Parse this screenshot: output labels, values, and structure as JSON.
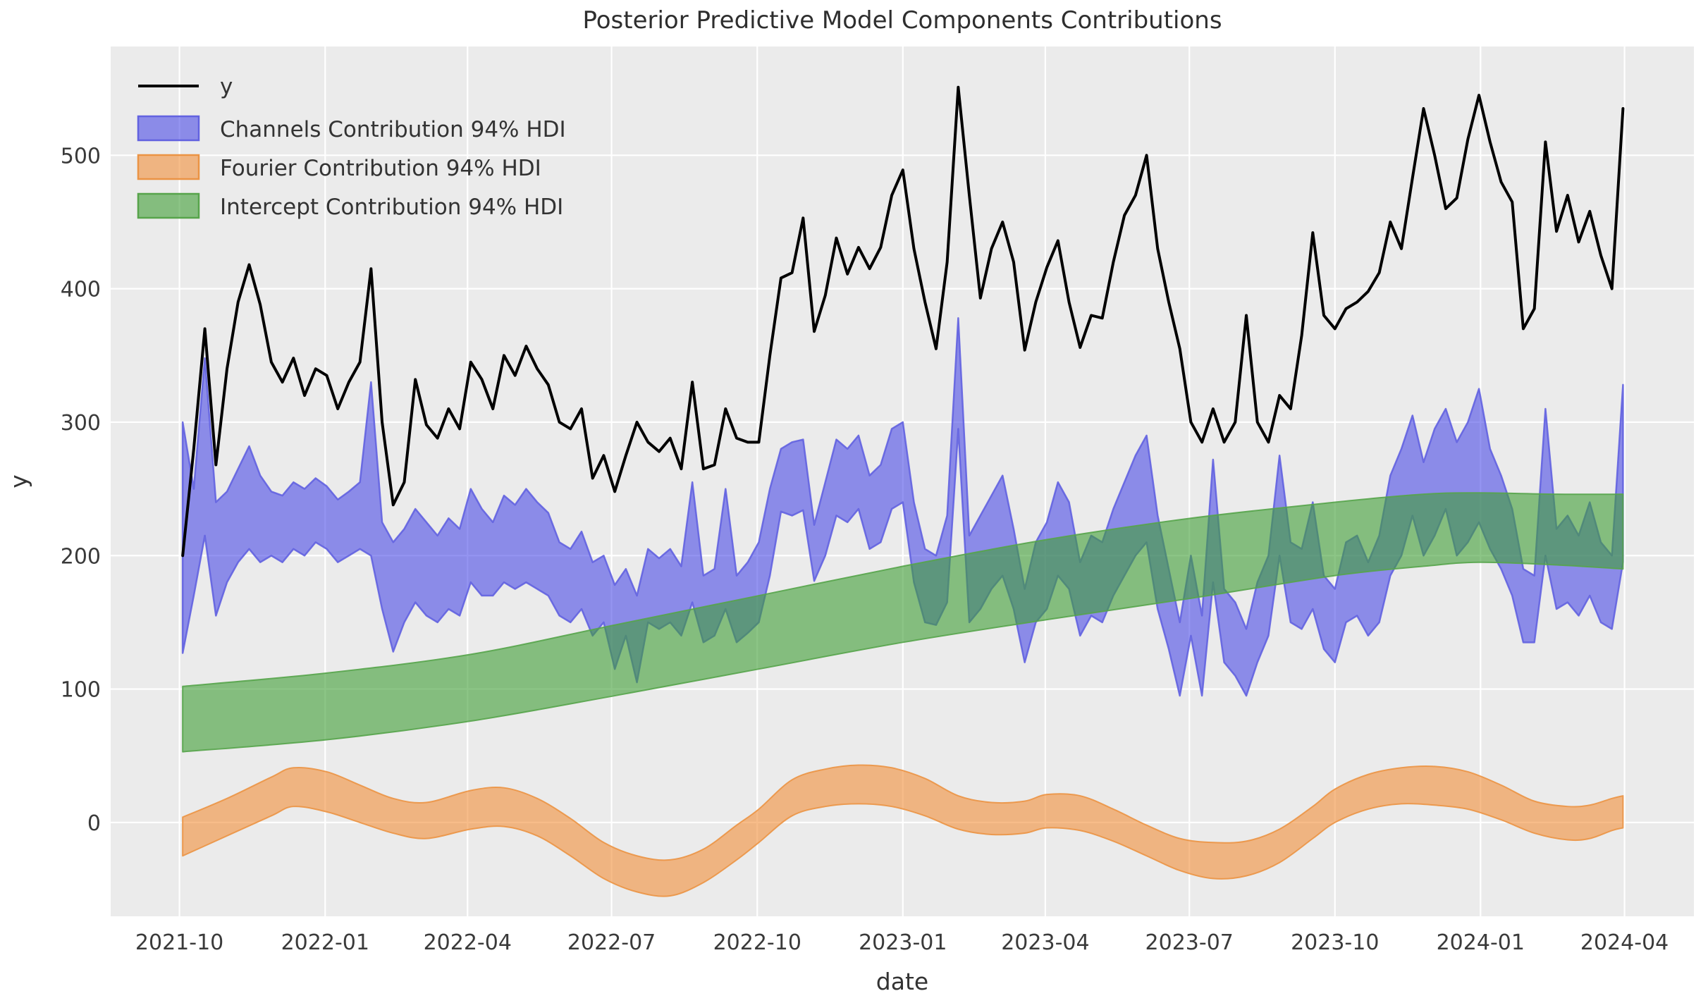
{
  "title": "Posterior Predictive Model Components Contributions",
  "xlabel": "date",
  "ylabel": "y",
  "legend": [
    {
      "label": "y",
      "type": "line"
    },
    {
      "label": "Channels Contribution 94% HDI",
      "type": "patch"
    },
    {
      "label": "Fourier Contribution 94% HDI",
      "type": "patch"
    },
    {
      "label": "Intercept Contribution 94% HDI",
      "type": "patch"
    }
  ],
  "colors": {
    "plot_background": "#ebebeb",
    "grid": "#ffffff",
    "y_line": "#000000",
    "channels_fill": "#3c3ce6",
    "channels_alpha": 0.55,
    "channels_edge": "#6262e0",
    "fourier_fill": "#f28b33",
    "fourier_alpha": 0.58,
    "fourier_edge": "#eb9344",
    "intercept_fill": "#3f9e35",
    "intercept_alpha": 0.6,
    "intercept_edge": "#57a44b",
    "text": "#3a3a3a"
  },
  "chart_data": {
    "type": "line",
    "x_unit": "weeks since 2021-10-03 (weekly observations)",
    "x_range_dates": [
      "2021-10-03",
      "2024-03-31"
    ],
    "xlim_weeks": [
      -6.5,
      136.4
    ],
    "ylim": [
      -70.3,
      581.5
    ],
    "grid": true,
    "legend_position": "upper left",
    "yticks": [
      0,
      100,
      200,
      300,
      400,
      500
    ],
    "xticks": [
      {
        "label": "2021-10",
        "week": -0.29
      },
      {
        "label": "2022-01",
        "week": 12.86
      },
      {
        "label": "2022-04",
        "week": 25.71
      },
      {
        "label": "2022-07",
        "week": 38.71
      },
      {
        "label": "2022-10",
        "week": 51.86
      },
      {
        "label": "2023-01",
        "week": 65.0
      },
      {
        "label": "2023-04",
        "week": 77.86
      },
      {
        "label": "2023-07",
        "week": 90.86
      },
      {
        "label": "2023-10",
        "week": 104.0
      },
      {
        "label": "2024-01",
        "week": 117.14
      },
      {
        "label": "2024-04",
        "week": 130.14
      }
    ],
    "x": [
      0,
      1,
      2,
      3,
      4,
      5,
      6,
      7,
      8,
      9,
      10,
      11,
      12,
      13,
      14,
      15,
      16,
      17,
      18,
      19,
      20,
      21,
      22,
      23,
      24,
      25,
      26,
      27,
      28,
      29,
      30,
      31,
      32,
      33,
      34,
      35,
      36,
      37,
      38,
      39,
      40,
      41,
      42,
      43,
      44,
      45,
      46,
      47,
      48,
      49,
      50,
      51,
      52,
      53,
      54,
      55,
      56,
      57,
      58,
      59,
      60,
      61,
      62,
      63,
      64,
      65,
      66,
      67,
      68,
      69,
      70,
      71,
      72,
      73,
      74,
      75,
      76,
      77,
      78,
      79,
      80,
      81,
      82,
      83,
      84,
      85,
      86,
      87,
      88,
      89,
      90,
      91,
      92,
      93,
      94,
      95,
      96,
      97,
      98,
      99,
      100,
      101,
      102,
      103,
      104,
      105,
      106,
      107,
      108,
      109,
      110,
      111,
      112,
      113,
      114,
      115,
      116,
      117,
      118,
      119,
      120,
      121,
      122,
      123,
      124,
      125,
      126,
      127,
      128,
      129,
      130
    ],
    "series": [
      {
        "name": "y",
        "type": "line",
        "values": [
          200,
          280,
          370,
          268,
          340,
          390,
          418,
          388,
          345,
          330,
          348,
          320,
          340,
          335,
          310,
          330,
          345,
          415,
          300,
          238,
          255,
          332,
          298,
          288,
          310,
          295,
          345,
          332,
          310,
          350,
          335,
          357,
          340,
          328,
          300,
          295,
          310,
          258,
          275,
          248,
          275,
          300,
          285,
          278,
          288,
          265,
          330,
          265,
          268,
          310,
          288,
          285,
          285,
          350,
          408,
          412,
          453,
          368,
          395,
          438,
          411,
          431,
          415,
          431,
          470,
          489,
          430,
          390,
          355,
          420,
          551,
          470,
          393,
          430,
          450,
          420,
          354,
          390,
          416,
          436,
          390,
          356,
          380,
          378,
          420,
          455,
          470,
          500,
          430,
          390,
          355,
          300,
          285,
          310,
          285,
          300,
          380,
          300,
          285,
          320,
          310,
          365,
          442,
          380,
          370,
          385,
          390,
          398,
          412,
          450,
          430,
          483,
          535,
          500,
          460,
          468,
          512,
          545,
          510,
          480,
          465,
          370,
          385,
          510,
          443,
          470,
          435,
          458,
          425,
          400,
          535
        ]
      },
      {
        "name": "Channels Contribution 94% HDI",
        "type": "band",
        "lower": [
          127,
          170,
          215,
          155,
          180,
          195,
          205,
          195,
          200,
          195,
          205,
          200,
          210,
          205,
          195,
          200,
          205,
          200,
          160,
          128,
          150,
          165,
          155,
          150,
          160,
          155,
          180,
          170,
          170,
          180,
          175,
          180,
          175,
          170,
          155,
          150,
          160,
          140,
          150,
          115,
          140,
          105,
          150,
          145,
          150,
          140,
          165,
          135,
          140,
          160,
          135,
          142,
          150,
          185,
          233,
          230,
          234,
          181,
          200,
          230,
          225,
          235,
          205,
          210,
          235,
          240,
          180,
          150,
          148,
          165,
          295,
          150,
          160,
          175,
          185,
          160,
          120,
          150,
          160,
          185,
          175,
          140,
          155,
          150,
          170,
          185,
          200,
          210,
          160,
          130,
          95,
          140,
          95,
          180,
          120,
          110,
          95,
          120,
          140,
          200,
          150,
          145,
          160,
          130,
          120,
          150,
          155,
          140,
          150,
          185,
          200,
          230,
          200,
          215,
          235,
          200,
          210,
          225,
          205,
          190,
          170,
          135,
          135,
          200,
          160,
          165,
          155,
          170,
          150,
          145,
          195
        ],
        "upper": [
          300,
          250,
          348,
          240,
          248,
          265,
          282,
          260,
          248,
          245,
          255,
          250,
          258,
          252,
          242,
          248,
          255,
          330,
          225,
          210,
          220,
          235,
          225,
          215,
          228,
          220,
          250,
          235,
          225,
          245,
          238,
          250,
          240,
          232,
          210,
          205,
          218,
          195,
          200,
          178,
          190,
          170,
          205,
          198,
          205,
          192,
          255,
          185,
          190,
          250,
          185,
          195,
          210,
          250,
          280,
          285,
          287,
          223,
          255,
          287,
          280,
          290,
          260,
          268,
          295,
          300,
          240,
          205,
          200,
          230,
          378,
          215,
          230,
          245,
          260,
          220,
          175,
          210,
          225,
          255,
          240,
          195,
          215,
          210,
          235,
          255,
          275,
          290,
          230,
          190,
          150,
          200,
          155,
          272,
          175,
          165,
          145,
          180,
          200,
          275,
          210,
          205,
          240,
          185,
          175,
          210,
          215,
          195,
          215,
          260,
          280,
          305,
          270,
          295,
          310,
          285,
          300,
          325,
          280,
          260,
          235,
          190,
          185,
          310,
          220,
          230,
          215,
          240,
          210,
          200,
          328
        ]
      },
      {
        "name": "Fourier Contribution 94% HDI",
        "type": "band_smooth",
        "anchors_week_lower_upper": [
          [
            0,
            -25,
            4
          ],
          [
            4,
            -10,
            18
          ],
          [
            8,
            5,
            34
          ],
          [
            10,
            12,
            41
          ],
          [
            13,
            8,
            38
          ],
          [
            16,
            0,
            28
          ],
          [
            19,
            -8,
            18
          ],
          [
            22,
            -12,
            15
          ],
          [
            26,
            -5,
            24
          ],
          [
            29,
            -3,
            26
          ],
          [
            32,
            -10,
            18
          ],
          [
            35,
            -25,
            3
          ],
          [
            38,
            -42,
            -15
          ],
          [
            41,
            -52,
            -25
          ],
          [
            44,
            -55,
            -28
          ],
          [
            47,
            -45,
            -20
          ],
          [
            50,
            -28,
            -2
          ],
          [
            52,
            -15,
            10
          ],
          [
            55,
            5,
            32
          ],
          [
            58,
            12,
            40
          ],
          [
            61,
            14,
            43
          ],
          [
            64,
            12,
            41
          ],
          [
            67,
            5,
            33
          ],
          [
            70,
            -5,
            20
          ],
          [
            73,
            -9,
            15
          ],
          [
            76,
            -8,
            16
          ],
          [
            78,
            -4,
            21
          ],
          [
            81,
            -6,
            20
          ],
          [
            84,
            -14,
            10
          ],
          [
            87,
            -25,
            -2
          ],
          [
            90,
            -36,
            -12
          ],
          [
            93,
            -42,
            -15
          ],
          [
            96,
            -40,
            -14
          ],
          [
            99,
            -30,
            -5
          ],
          [
            102,
            -12,
            12
          ],
          [
            104,
            0,
            25
          ],
          [
            107,
            10,
            36
          ],
          [
            110,
            14,
            41
          ],
          [
            113,
            13,
            42
          ],
          [
            116,
            10,
            38
          ],
          [
            119,
            2,
            28
          ],
          [
            122,
            -8,
            16
          ],
          [
            125,
            -13,
            12
          ],
          [
            127,
            -12,
            13
          ],
          [
            129,
            -6,
            18
          ],
          [
            130,
            -4,
            20
          ]
        ]
      },
      {
        "name": "Intercept Contribution 94% HDI",
        "type": "band_smooth",
        "anchors_week_lower_upper": [
          [
            0,
            53,
            102
          ],
          [
            13,
            62,
            112
          ],
          [
            26,
            76,
            126
          ],
          [
            39,
            95,
            148
          ],
          [
            52,
            115,
            170
          ],
          [
            65,
            135,
            192
          ],
          [
            78,
            152,
            212
          ],
          [
            91,
            168,
            228
          ],
          [
            104,
            185,
            240
          ],
          [
            112,
            192,
            246
          ],
          [
            117,
            195,
            247
          ],
          [
            124,
            193,
            246
          ],
          [
            130,
            190,
            246
          ]
        ]
      }
    ]
  }
}
